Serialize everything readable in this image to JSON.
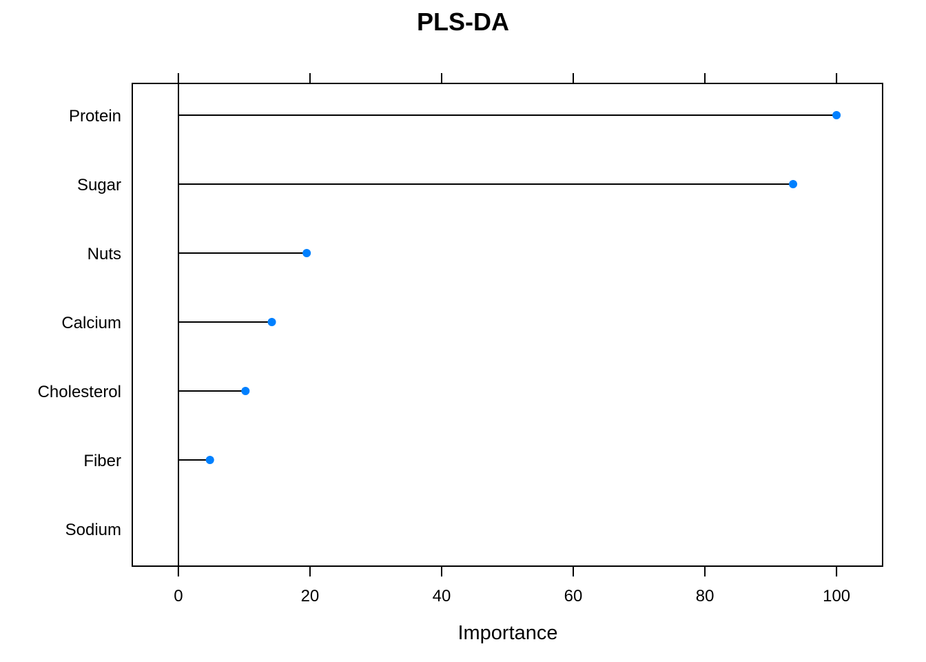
{
  "chart_data": {
    "type": "lollipop",
    "title": "PLS-DA",
    "xlabel": "Importance",
    "ylabel": "",
    "xlim": [
      -7,
      107
    ],
    "xticks": [
      0,
      20,
      40,
      60,
      80,
      100
    ],
    "categories": [
      "Protein",
      "Sugar",
      "Nuts",
      "Calcium",
      "Cholesterol",
      "Fiber",
      "Sodium"
    ],
    "values": [
      100,
      93.4,
      19.5,
      14.2,
      10.2,
      4.8,
      0
    ],
    "point_color": "#0080ff",
    "line_color": "#000000",
    "grid": false
  }
}
